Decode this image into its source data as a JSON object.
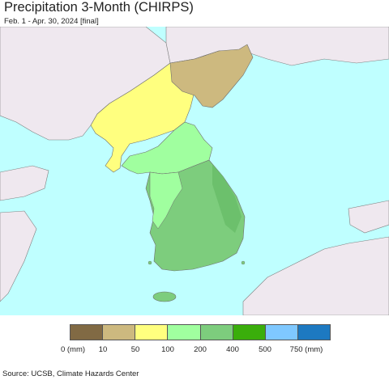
{
  "header": {
    "title": "Precipitation 3-Month (CHIRPS)",
    "subtitle": "Feb. 1 - Apr. 30, 2024 [final]"
  },
  "map": {
    "ocean_color": "#bfffff",
    "land_color": "#efe8ef",
    "regions": [
      {
        "name": "north-korea-northeast",
        "category": "10-50"
      },
      {
        "name": "north-korea-central",
        "category": "50-100"
      },
      {
        "name": "korea-border-area",
        "category": "100-200"
      },
      {
        "name": "south-korea",
        "category": "200-400"
      },
      {
        "name": "jeju-island",
        "category": "200-400"
      }
    ]
  },
  "legend": {
    "colors": [
      "#816a44",
      "#cdb97f",
      "#ffff7f",
      "#a0ff9f",
      "#7dcd7d",
      "#3aae0b",
      "#7fc8ff",
      "#1d79c1"
    ],
    "labels": [
      {
        "text": "0 (mm)"
      },
      {
        "text": "10"
      },
      {
        "text": "50"
      },
      {
        "text": "100"
      },
      {
        "text": "200"
      },
      {
        "text": "400"
      },
      {
        "text": "500"
      },
      {
        "text": "750 (mm)"
      }
    ]
  },
  "footer": {
    "source": "Source: UCSB, Climate Hazards Center"
  }
}
